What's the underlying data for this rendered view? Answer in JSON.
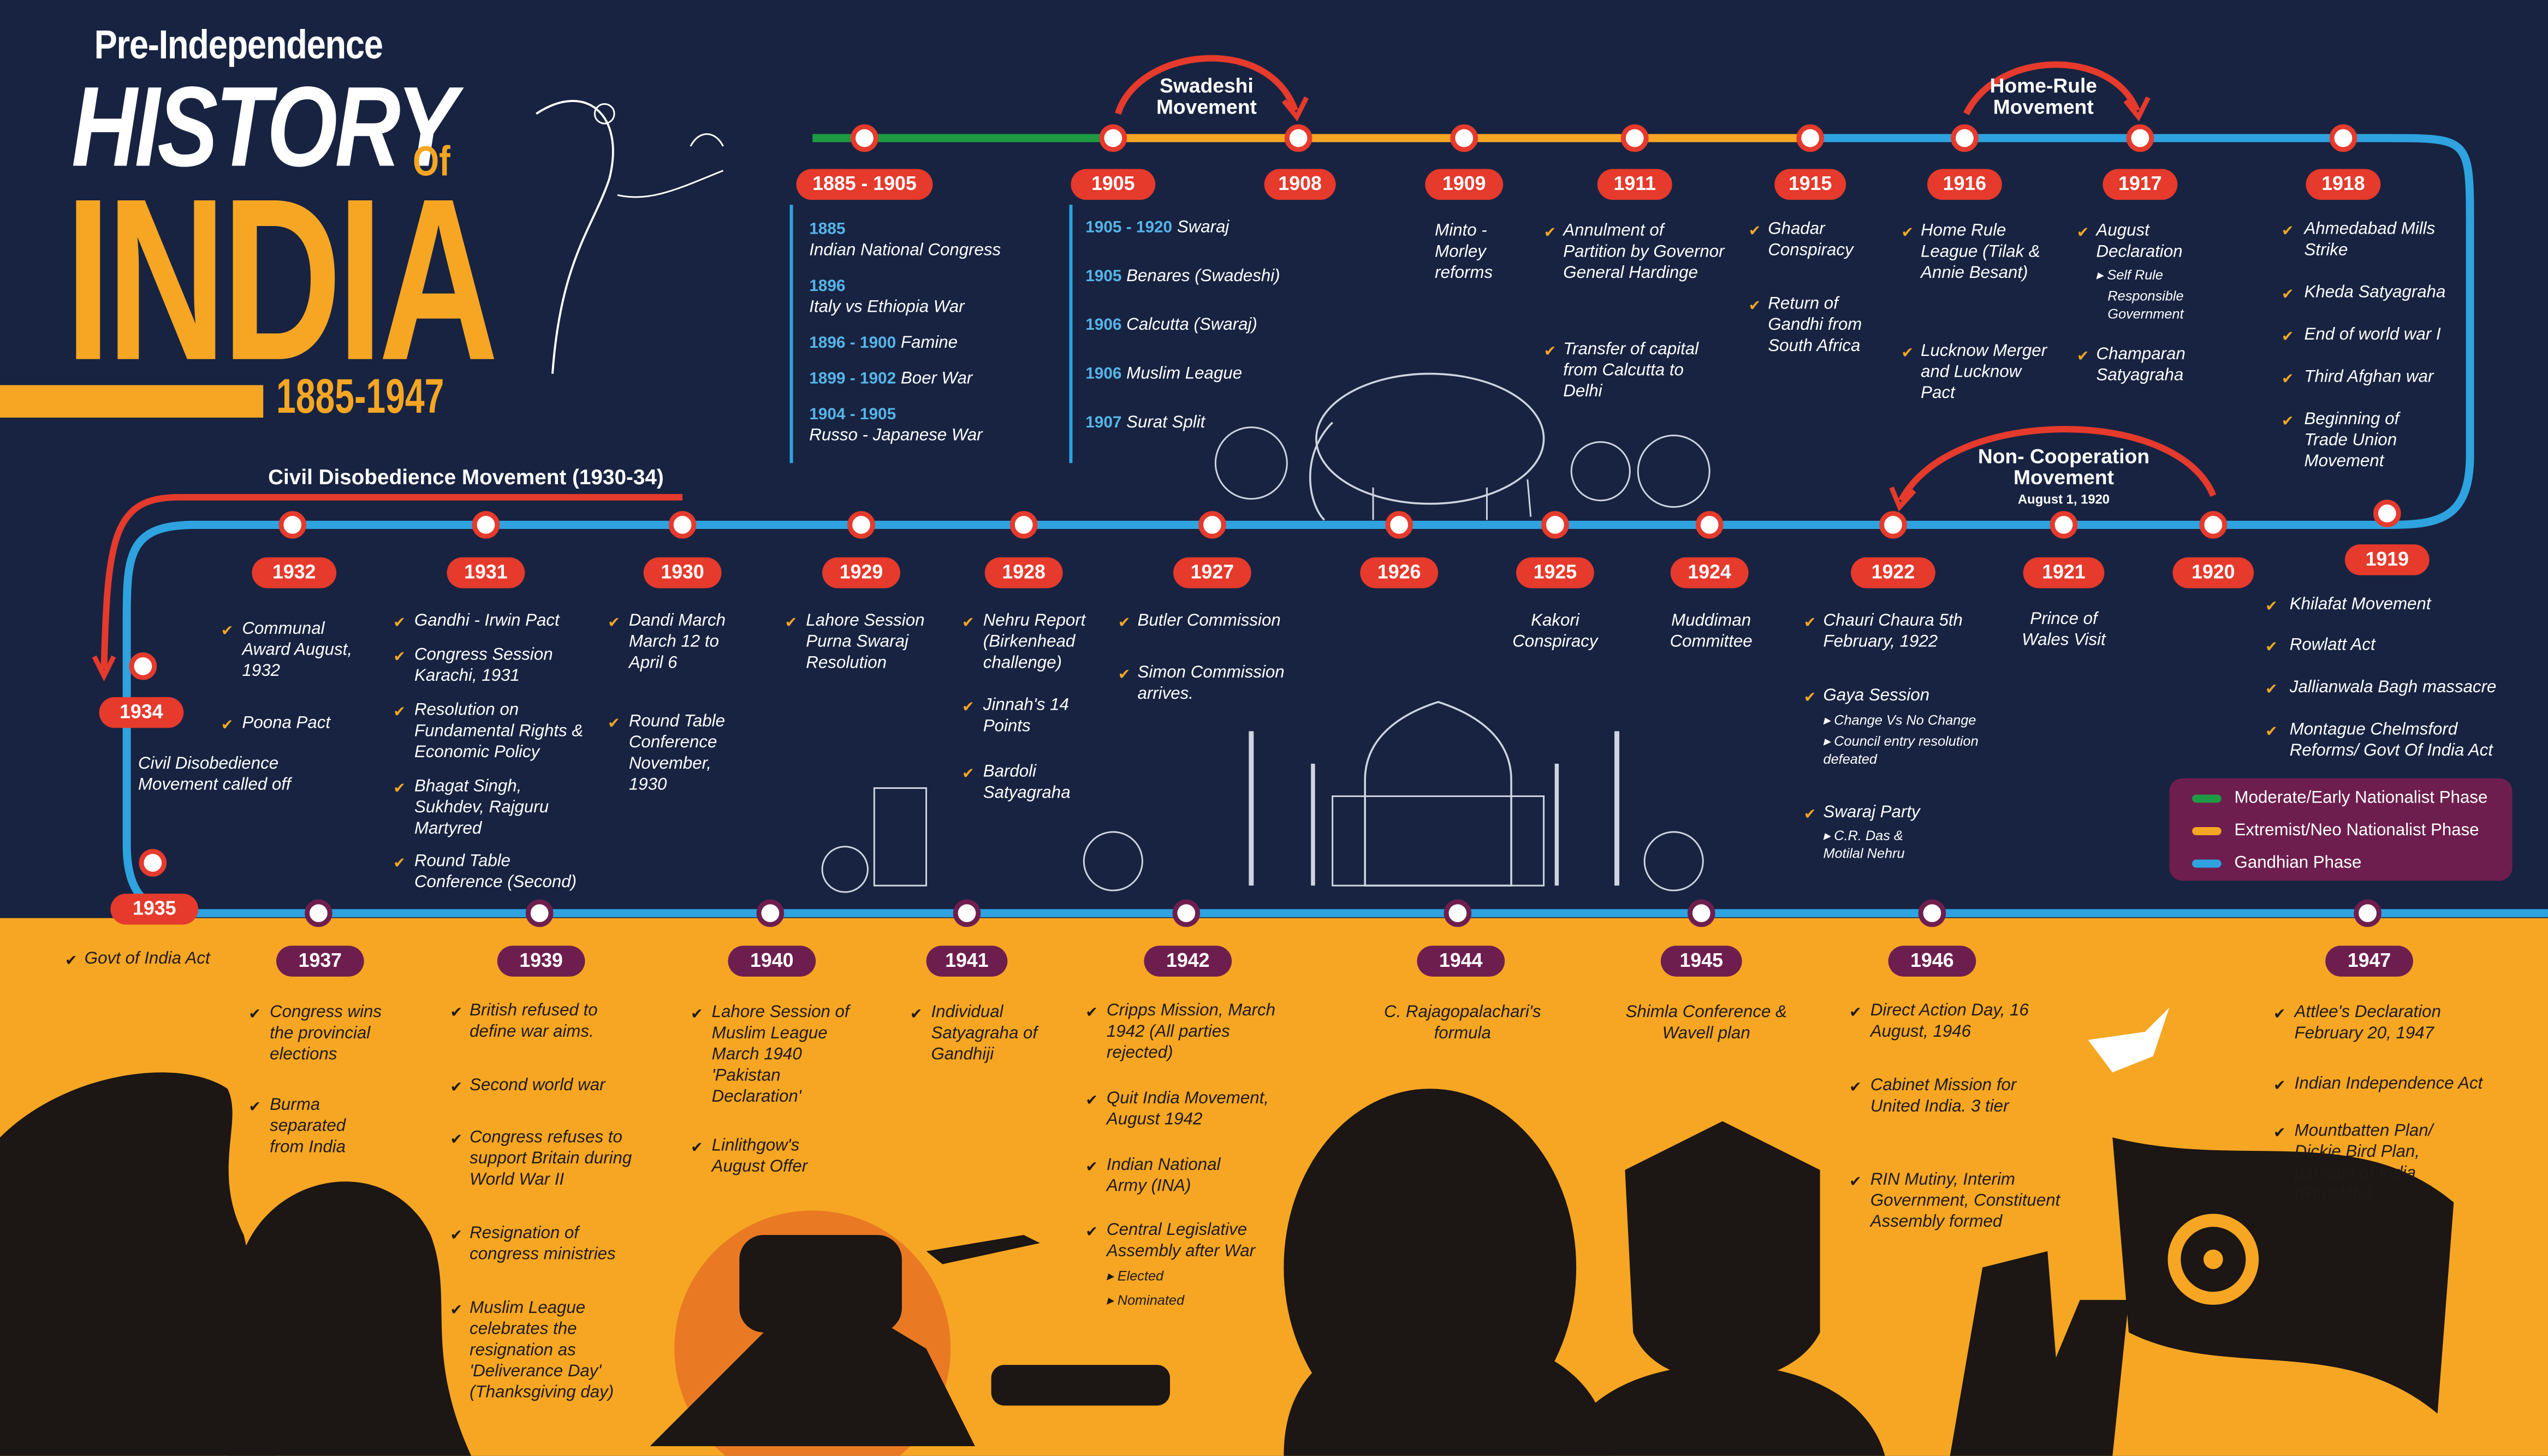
{
  "title": {
    "line1": "Pre-Independence",
    "line2": "HISTORY",
    "line3": "Of",
    "line4": "INDIA",
    "years": "1885-1947"
  },
  "arcs": {
    "swadeshi": "Swadeshi Movement",
    "home_rule": "Home-Rule Movement",
    "non_cooperation": "Non- Cooperation Movement",
    "non_cooperation_date": "August 1, 1920",
    "civil_disobedience": "Civil Disobedience Movement (1930-34)"
  },
  "legend": [
    {
      "label": "Moderate/Early Nationalist Phase",
      "color": "#1E9A44"
    },
    {
      "label": "Extremist/Neo Nationalist Phase",
      "color": "#F6A623"
    },
    {
      "label": "Gandhian Phase",
      "color": "#2EA3E0"
    }
  ],
  "colors": {
    "navy": "#172341",
    "orange": "#F6A623",
    "red": "#E53A2C",
    "purple": "#6E1E4E",
    "blue": "#2EA3E0",
    "green": "#1E9A44"
  },
  "y1885": {
    "year": "1885 - 1905",
    "e": [
      {
        "b": "1885",
        "t": "Indian National Congress"
      },
      {
        "b": "1896",
        "t": "Italy vs Ethiopia War"
      },
      {
        "b": "1896 - 1900",
        "t": "Famine"
      },
      {
        "b": "1899 - 1902",
        "t": "Boer War"
      },
      {
        "b": "1904 - 1905",
        "t": "Russo - Japanese War"
      }
    ]
  },
  "y1905": {
    "year": "1905",
    "e": [
      {
        "b": "1905 - 1920",
        "t": "Swaraj"
      },
      {
        "b": "1905",
        "t": "Benares (Swadeshi)"
      },
      {
        "b": "1906",
        "t": "Calcutta (Swaraj)"
      },
      {
        "b": "1906",
        "t": "Muslim League"
      },
      {
        "b": "1907",
        "t": "Surat Split"
      }
    ]
  },
  "y1908": {
    "year": "1908"
  },
  "y1909": {
    "year": "1909",
    "e1": "Minto - Morley reforms"
  },
  "y1911": {
    "year": "1911",
    "e1": "Annulment of Partition by Governor General Hardinge",
    "e2": "Transfer of capital from Calcutta to Delhi"
  },
  "y1915": {
    "year": "1915",
    "e1": "Ghadar Conspiracy",
    "e2": "Return of Gandhi from South Africa"
  },
  "y1916": {
    "year": "1916",
    "e1": "Home Rule League (Tilak & Annie Besant)",
    "e2": "Lucknow Merger and Lucknow Pact"
  },
  "y1917": {
    "year": "1917",
    "e1": "August Declaration",
    "s1": "Self Rule",
    "s2": "Responsible Government",
    "e2": "Champaran Satyagraha"
  },
  "y1918": {
    "year": "1918",
    "e1": "Ahmedabad Mills Strike",
    "e2": "Kheda Satyagraha",
    "e3": "End of world war I",
    "e4": "Third Afghan war",
    "e5": "Beginning of Trade Union Movement"
  },
  "y1919": {
    "year": "1919",
    "e1": "Khilafat Movement",
    "e2": "Rowlatt Act",
    "e3": "Jallianwala Bagh massacre",
    "e4": "Montague Chelmsford Reforms/ Govt Of India Act"
  },
  "y1920": {
    "year": "1920"
  },
  "y1921": {
    "year": "1921",
    "e1": "Prince of Wales Visit"
  },
  "y1922": {
    "year": "1922",
    "e1": "Chauri Chaura 5th February, 1922",
    "e2": "Gaya Session",
    "s1": "Change Vs No Change",
    "s2": "Council entry resolution defeated",
    "e3": "Swaraj Party",
    "s3": "C.R. Das & Motilal Nehru"
  },
  "y1924": {
    "year": "1924",
    "e1": "Muddiman Committee"
  },
  "y1925": {
    "year": "1925",
    "e1": "Kakori Conspiracy"
  },
  "y1926": {
    "year": "1926"
  },
  "y1927": {
    "year": "1927",
    "e1": "Butler Commission",
    "e2": "Simon Commission arrives."
  },
  "y1928": {
    "year": "1928",
    "e1": "Nehru Report (Birkenhead challenge)",
    "e2": "Jinnah's 14 Points",
    "e3": "Bardoli Satyagraha"
  },
  "y1929": {
    "year": "1929",
    "e1": "Lahore Session Purna Swaraj Resolution"
  },
  "y1930": {
    "year": "1930",
    "e1": "Dandi March March 12 to April 6",
    "e2": "Round Table Conference November, 1930"
  },
  "y1931": {
    "year": "1931",
    "e1": "Gandhi - Irwin Pact",
    "e2": "Congress Session Karachi, 1931",
    "e3": "Resolution on Fundamental Rights & Economic Policy",
    "e4": "Bhagat Singh, Sukhdev, Rajguru Martyred",
    "e5": "Round Table Conference (Second)"
  },
  "y1932": {
    "year": "1932",
    "e1": "Communal Award August, 1932",
    "e2": "Poona Pact"
  },
  "y1934": {
    "year": "1934",
    "e1": "Civil Disobedience Movement called off"
  },
  "y1935": {
    "year": "1935",
    "e1": "Govt of India Act"
  },
  "y1937": {
    "year": "1937",
    "e1": "Congress wins the provincial elections",
    "e2": "Burma separated from India"
  },
  "y1939": {
    "year": "1939",
    "e1": "British refused to define war aims.",
    "e2": "Second world war",
    "e3": "Congress refuses to support Britain during World War II",
    "e4": "Resignation of congress ministries",
    "e5": "Muslim League celebrates the resignation as 'Deliverance Day' (Thanksgiving day)"
  },
  "y1940": {
    "year": "1940",
    "e1": "Lahore Session of Muslim League March 1940 'Pakistan Declaration'",
    "e2": "Linlithgow's August Offer"
  },
  "y1941": {
    "year": "1941",
    "e1": "Individual Satyagraha of Gandhiji"
  },
  "y1942": {
    "year": "1942",
    "e1": "Cripps Mission, March 1942 (All parties rejected)",
    "e2": "Quit India Movement, August 1942",
    "e3": "Indian National Army (INA)",
    "e4": "Central Legislative Assembly after War",
    "s1": "Elected",
    "s2": "Nominated"
  },
  "y1944": {
    "year": "1944",
    "e1": "C. Rajagopalachari's formula"
  },
  "y1945": {
    "year": "1945",
    "e1": "Shimla Conference & Wavell plan"
  },
  "y1946": {
    "year": "1946",
    "e1": "Direct Action Day, 16 August, 1946",
    "e2": "Cabinet Mission for United India. 3 tier",
    "e3": "RIN Mutiny, Interim Government, Constituent Assembly formed"
  },
  "y1947": {
    "year": "1947",
    "e1": "Attlee's Declaration February 20, 1947",
    "e2": "Indian Independence Act",
    "e3": "Mountbatten Plan/ Dickie Bird Plan, partition of India (Radcliffe)"
  }
}
